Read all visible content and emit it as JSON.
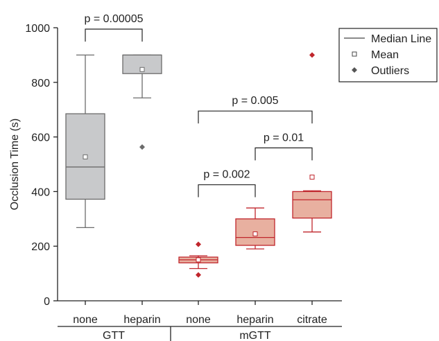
{
  "chart_data": {
    "type": "box",
    "ylabel": "Occlusion Time (s)",
    "ylim": [
      0,
      1000
    ],
    "yticks": [
      0,
      200,
      400,
      600,
      800,
      1000
    ],
    "colors": {
      "GTT": {
        "fill": "#c8c9cb",
        "stroke": "#6b6b6b",
        "outlier": "#6b6b6b"
      },
      "mGTT": {
        "fill": "#e8b0a0",
        "stroke": "#c0262c",
        "outlier": "#c0262c"
      }
    },
    "groups": [
      {
        "label": "GTT",
        "categories": [
          "none",
          "heparin"
        ]
      },
      {
        "label": "mGTT",
        "categories": [
          "none",
          "heparin",
          "citrate"
        ]
      }
    ],
    "boxes": [
      {
        "group": "GTT",
        "category": "none",
        "whisker_low": 268,
        "q1": 372,
        "median": 490,
        "q3": 685,
        "whisker_high": 900,
        "mean": 527,
        "outliers": []
      },
      {
        "group": "GTT",
        "category": "heparin",
        "whisker_low": 743,
        "q1": 832,
        "median": 900,
        "q3": 900,
        "whisker_high": 900,
        "mean": 847,
        "outliers": [
          563
        ]
      },
      {
        "group": "mGTT",
        "category": "none",
        "whisker_low": 118,
        "q1": 139,
        "median": 150,
        "q3": 160,
        "whisker_high": 165,
        "mean": 150,
        "outliers": [
          207,
          95
        ]
      },
      {
        "group": "mGTT",
        "category": "heparin",
        "whisker_low": 190,
        "q1": 203,
        "median": 232,
        "q3": 300,
        "whisker_high": 340,
        "mean": 245,
        "outliers": []
      },
      {
        "group": "mGTT",
        "category": "citrate",
        "whisker_low": 252,
        "q1": 303,
        "median": 370,
        "q3": 400,
        "whisker_high": 403,
        "mean": 453,
        "outliers": [
          900
        ]
      }
    ],
    "legend": {
      "position": "top-right",
      "entries": [
        {
          "label": "Median Line",
          "marker": "line"
        },
        {
          "label": "Mean",
          "marker": "open-square"
        },
        {
          "label": "Outliers",
          "marker": "diamond"
        }
      ]
    },
    "annotations": [
      {
        "text": "p = 0.00005",
        "from": 0,
        "to": 1,
        "y": 995
      },
      {
        "text": "p = 0.005",
        "from": 2,
        "to": 4,
        "y": 695
      },
      {
        "text": "p = 0.01",
        "from": 3,
        "to": 4,
        "y": 560
      },
      {
        "text": "p = 0.002",
        "from": 2,
        "to": 3,
        "y": 425
      }
    ]
  }
}
